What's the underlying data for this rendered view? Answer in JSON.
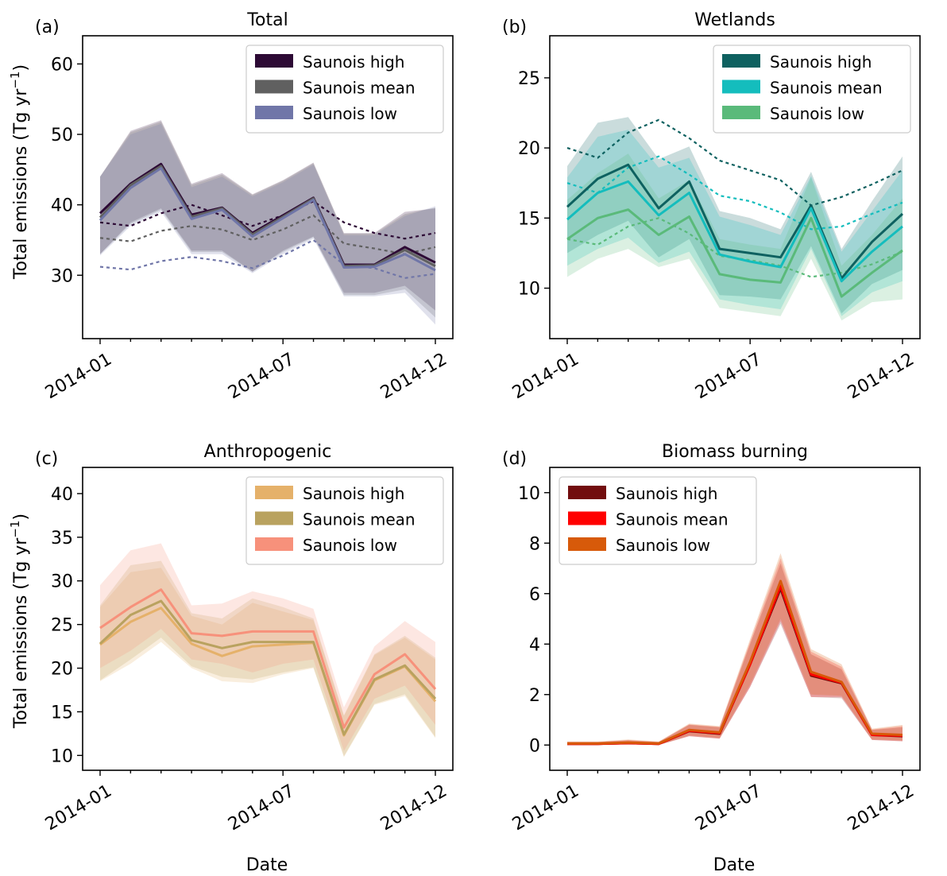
{
  "figure": {
    "ylabel_prefix": "Total emissions (Tg yr",
    "ylabel_exp": "−1",
    "ylabel_suffix": ")",
    "xlabel": "Date"
  },
  "chart_data": [
    {
      "type": "line",
      "panel_label": "(a)",
      "title": "Total",
      "ylim": [
        21,
        64
      ],
      "yticks": [
        30,
        40,
        50,
        60
      ],
      "xticks": [
        "2014-01",
        "2014-07",
        "2014-12"
      ],
      "x": [
        "2014-01",
        "2014-02",
        "2014-03",
        "2014-04",
        "2014-05",
        "2014-06",
        "2014-07",
        "2014-08",
        "2014-09",
        "2014-10",
        "2014-11",
        "2014-12"
      ],
      "legend_position": "upper-right",
      "series": [
        {
          "name": "Saunois high",
          "color": "#2d0a35",
          "values": [
            38.8,
            43.0,
            45.8,
            38.6,
            39.6,
            36.0,
            38.5,
            41.0,
            31.5,
            31.5,
            34.0,
            31.8
          ],
          "band_low": [
            33.0,
            37.5,
            39.5,
            33.5,
            33.5,
            30.5,
            33.5,
            35.5,
            27.5,
            27.5,
            28.5,
            25.0
          ],
          "band_high": [
            44.0,
            50.5,
            52.0,
            43.0,
            44.5,
            41.5,
            43.5,
            46.0,
            36.0,
            36.0,
            39.0,
            39.5
          ],
          "prior": [
            37.5,
            37.0,
            38.8,
            40.0,
            38.5,
            37.0,
            38.5,
            40.5,
            37.5,
            36.0,
            35.2,
            36.0
          ]
        },
        {
          "name": "Saunois mean",
          "color": "#606060",
          "values": [
            38.2,
            42.8,
            45.5,
            38.3,
            39.5,
            35.8,
            38.3,
            40.9,
            31.3,
            31.4,
            33.6,
            31.3
          ],
          "band_low": [
            33.0,
            37.3,
            39.3,
            33.3,
            33.3,
            30.5,
            33.3,
            35.4,
            27.2,
            27.2,
            28.0,
            24.0
          ],
          "band_high": [
            44.0,
            50.3,
            51.8,
            42.8,
            44.3,
            41.4,
            43.4,
            45.9,
            35.9,
            35.9,
            38.7,
            39.6
          ],
          "prior": [
            35.3,
            34.8,
            36.3,
            37.0,
            36.5,
            35.0,
            36.5,
            38.5,
            34.5,
            33.8,
            33.0,
            34.0
          ]
        },
        {
          "name": "Saunois low",
          "color": "#7076a8",
          "values": [
            37.8,
            42.4,
            45.2,
            38.0,
            39.3,
            35.5,
            38.1,
            40.7,
            31.1,
            31.2,
            33.0,
            30.7
          ],
          "band_low": [
            32.8,
            37.0,
            39.0,
            33.0,
            33.0,
            30.3,
            33.0,
            35.2,
            27.0,
            27.0,
            27.5,
            23.0
          ],
          "band_high": [
            44.0,
            50.0,
            51.5,
            42.5,
            44.0,
            41.2,
            43.2,
            45.7,
            35.7,
            35.7,
            38.4,
            39.8
          ],
          "prior": [
            31.2,
            30.8,
            32.0,
            32.6,
            32.0,
            31.0,
            32.8,
            35.0,
            31.5,
            31.0,
            29.6,
            30.2
          ]
        }
      ]
    },
    {
      "type": "line",
      "panel_label": "(b)",
      "title": "Wetlands",
      "ylim": [
        6.4,
        28
      ],
      "yticks": [
        10,
        15,
        20,
        25
      ],
      "xticks": [
        "2014-01",
        "2014-07",
        "2014-12"
      ],
      "x": [
        "2014-01",
        "2014-02",
        "2014-03",
        "2014-04",
        "2014-05",
        "2014-06",
        "2014-07",
        "2014-08",
        "2014-09",
        "2014-10",
        "2014-11",
        "2014-12"
      ],
      "legend_position": "upper-right",
      "series": [
        {
          "name": "Saunois high",
          "color": "#0e6160",
          "values": [
            15.8,
            17.8,
            18.8,
            15.7,
            17.6,
            12.8,
            12.5,
            12.2,
            15.9,
            10.7,
            13.3,
            15.3
          ],
          "band_low": [
            12.5,
            13.8,
            14.8,
            12.2,
            13.5,
            9.5,
            9.4,
            9.2,
            13.0,
            8.2,
            10.3,
            11.3
          ],
          "band_high": [
            18.7,
            21.8,
            22.2,
            19.2,
            20.1,
            15.5,
            15.0,
            14.2,
            18.3,
            12.8,
            16.2,
            19.4
          ],
          "prior": [
            20.0,
            19.3,
            21.1,
            22.0,
            20.7,
            19.1,
            18.4,
            17.7,
            15.9,
            16.5,
            17.4,
            18.4
          ]
        },
        {
          "name": "Saunois mean",
          "color": "#14bdbd",
          "values": [
            14.9,
            16.8,
            17.6,
            15.2,
            16.8,
            12.4,
            11.9,
            11.5,
            15.7,
            10.5,
            12.6,
            14.4
          ],
          "band_low": [
            11.6,
            12.8,
            13.6,
            11.8,
            12.6,
            9.2,
            8.8,
            8.5,
            12.8,
            8.0,
            9.7,
            10.5
          ],
          "band_high": [
            17.9,
            20.8,
            21.3,
            18.6,
            19.3,
            15.1,
            14.5,
            13.8,
            18.0,
            12.6,
            15.5,
            18.4
          ],
          "prior": [
            17.5,
            16.8,
            18.6,
            19.4,
            18.1,
            16.6,
            16.2,
            15.4,
            14.2,
            14.4,
            15.3,
            16.1
          ]
        },
        {
          "name": "Saunois low",
          "color": "#5aba7a",
          "values": [
            13.5,
            15.0,
            15.6,
            13.8,
            15.1,
            11.0,
            10.6,
            10.4,
            15.0,
            9.4,
            11.1,
            12.7
          ],
          "band_low": [
            10.8,
            12.1,
            12.8,
            11.5,
            12.1,
            8.6,
            8.3,
            8.0,
            12.1,
            7.7,
            9.0,
            9.2
          ],
          "band_high": [
            16.3,
            18.2,
            19.6,
            16.4,
            17.7,
            13.5,
            13.1,
            12.8,
            17.9,
            11.6,
            13.8,
            16.4
          ],
          "prior": [
            13.5,
            13.1,
            14.4,
            15.0,
            13.9,
            12.3,
            12.0,
            11.6,
            10.8,
            11.1,
            11.7,
            12.6
          ]
        }
      ]
    },
    {
      "type": "line",
      "panel_label": "(c)",
      "title": "Anthropogenic",
      "ylim": [
        8.3,
        43
      ],
      "yticks": [
        10,
        15,
        20,
        25,
        30,
        35,
        40
      ],
      "xticks": [
        "2014-01",
        "2014-07",
        "2014-12"
      ],
      "x": [
        "2014-01",
        "2014-02",
        "2014-03",
        "2014-04",
        "2014-05",
        "2014-06",
        "2014-07",
        "2014-08",
        "2014-09",
        "2014-10",
        "2014-11",
        "2014-12"
      ],
      "legend_position": "upper-right",
      "series": [
        {
          "name": "Saunois high",
          "color": "#e5b16a",
          "values": [
            22.7,
            25.3,
            26.9,
            22.8,
            21.4,
            22.5,
            22.7,
            22.9,
            12.3,
            18.6,
            20.2,
            16.2
          ],
          "band_low": [
            18.5,
            20.5,
            23.0,
            20.0,
            18.5,
            18.3,
            19.3,
            20.0,
            9.8,
            15.8,
            16.8,
            12.0
          ],
          "band_high": [
            27.0,
            31.0,
            31.5,
            26.0,
            25.0,
            27.5,
            26.5,
            25.5,
            14.5,
            21.5,
            23.5,
            21.0
          ],
          "prior": []
        },
        {
          "name": "Saunois mean",
          "color": "#b9a25f",
          "values": [
            22.8,
            26.1,
            27.7,
            23.2,
            22.3,
            23.0,
            23.0,
            23.0,
            12.4,
            18.7,
            20.3,
            16.5
          ],
          "band_low": [
            18.6,
            21.0,
            23.5,
            20.2,
            19.0,
            18.7,
            19.5,
            20.1,
            9.9,
            15.9,
            17.0,
            12.1
          ],
          "band_high": [
            27.2,
            31.8,
            32.3,
            26.3,
            25.7,
            28.0,
            27.0,
            25.7,
            14.6,
            21.6,
            23.7,
            21.2
          ],
          "prior": []
        },
        {
          "name": "Saunois low",
          "color": "#f7917b",
          "values": [
            24.6,
            27.0,
            29.0,
            24.0,
            23.7,
            24.2,
            24.2,
            24.2,
            13.2,
            19.3,
            21.6,
            17.6
          ],
          "band_low": [
            20.0,
            22.0,
            24.5,
            21.0,
            20.5,
            19.5,
            20.5,
            21.0,
            10.5,
            16.5,
            18.0,
            13.5
          ],
          "band_high": [
            29.5,
            33.5,
            34.3,
            27.2,
            27.4,
            28.8,
            28.0,
            26.8,
            15.5,
            22.5,
            25.4,
            23.0
          ],
          "prior": []
        }
      ]
    },
    {
      "type": "line",
      "panel_label": "(d)",
      "title": "Biomass burning",
      "ylim": [
        -1.0,
        11.0
      ],
      "yticks": [
        0,
        2,
        4,
        6,
        8,
        10
      ],
      "xticks": [
        "2014-01",
        "2014-07",
        "2014-12"
      ],
      "x": [
        "2014-01",
        "2014-02",
        "2014-03",
        "2014-04",
        "2014-05",
        "2014-06",
        "2014-07",
        "2014-08",
        "2014-09",
        "2014-10",
        "2014-11",
        "2014-12"
      ],
      "legend_position": "upper-left",
      "series": [
        {
          "name": "Saunois high",
          "color": "#720d0e",
          "values": [
            0.05,
            0.05,
            0.08,
            0.05,
            0.55,
            0.45,
            3.2,
            6.2,
            2.75,
            2.45,
            0.4,
            0.35
          ],
          "band_low": [
            0.0,
            0.0,
            0.02,
            0.0,
            0.35,
            0.25,
            2.3,
            4.8,
            1.9,
            1.85,
            0.2,
            0.15
          ],
          "band_high": [
            0.12,
            0.12,
            0.18,
            0.12,
            0.8,
            0.7,
            4.0,
            7.2,
            3.6,
            3.0,
            0.6,
            0.7
          ],
          "prior": []
        },
        {
          "name": "Saunois mean",
          "color": "#ff0000",
          "values": [
            0.05,
            0.05,
            0.08,
            0.05,
            0.57,
            0.47,
            3.2,
            6.3,
            2.8,
            2.47,
            0.4,
            0.37
          ],
          "band_low": [
            0.0,
            0.0,
            0.02,
            0.0,
            0.35,
            0.25,
            2.3,
            4.9,
            1.9,
            1.9,
            0.2,
            0.15
          ],
          "band_high": [
            0.12,
            0.12,
            0.2,
            0.12,
            0.82,
            0.72,
            4.1,
            7.4,
            3.7,
            3.1,
            0.62,
            0.75
          ],
          "prior": []
        },
        {
          "name": "Saunois low",
          "color": "#d75a0a",
          "values": [
            0.06,
            0.06,
            0.1,
            0.06,
            0.6,
            0.5,
            3.3,
            6.5,
            2.9,
            2.5,
            0.45,
            0.4
          ],
          "band_low": [
            0.0,
            0.0,
            0.03,
            0.0,
            0.38,
            0.28,
            2.4,
            5.0,
            2.0,
            1.95,
            0.22,
            0.18
          ],
          "band_high": [
            0.14,
            0.14,
            0.22,
            0.14,
            0.85,
            0.75,
            4.2,
            7.6,
            3.8,
            3.2,
            0.65,
            0.8
          ],
          "prior": []
        }
      ]
    }
  ]
}
